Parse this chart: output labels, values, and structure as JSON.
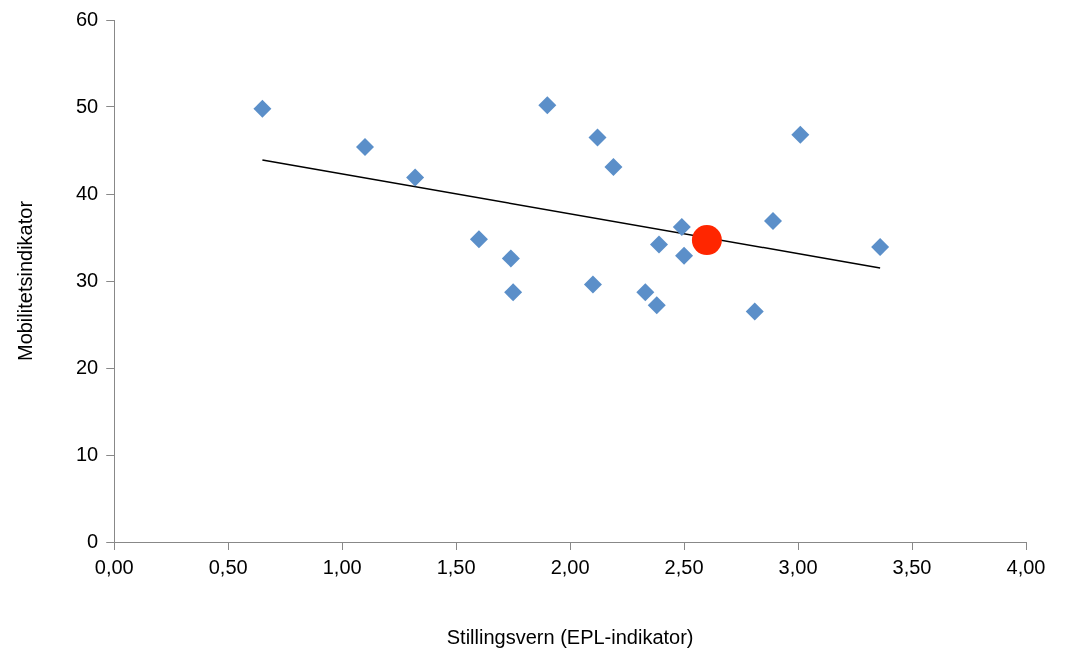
{
  "chart_data": {
    "type": "scatter",
    "xlabel": "Stillingsvern (EPL-indikator)",
    "ylabel": "Mobilitetsindikator",
    "marker": "diamond",
    "grid": false,
    "legend": false,
    "xlim": [
      0,
      4
    ],
    "xticks": [
      {
        "value": 0,
        "label": "0,00"
      },
      {
        "value": 0.5,
        "label": "0,50"
      },
      {
        "value": 1,
        "label": "1,00"
      },
      {
        "value": 1.5,
        "label": "1,50"
      },
      {
        "value": 2,
        "label": "2,00"
      },
      {
        "value": 2.5,
        "label": "2,50"
      },
      {
        "value": 3,
        "label": "3,00"
      },
      {
        "value": 3.5,
        "label": "3,50"
      },
      {
        "value": 4,
        "label": "4,00"
      }
    ],
    "ylim": [
      0,
      60
    ],
    "yticks": [
      0,
      10,
      20,
      30,
      40,
      50,
      60
    ],
    "series": [
      {
        "type": "scatter",
        "color": "#5b8fc9",
        "x": [
          0.65,
          1.1,
          1.32,
          1.6,
          1.74,
          1.75,
          1.9,
          2.1,
          2.12,
          2.19,
          2.33,
          2.39,
          2.38,
          2.49,
          2.5,
          2.81,
          2.89,
          3.01,
          3.36
        ],
        "values": [
          49.8,
          45.4,
          41.9,
          34.8,
          32.6,
          28.7,
          50.2,
          29.6,
          46.5,
          43.1,
          28.7,
          34.2,
          27.2,
          36.2,
          32.9,
          26.5,
          36.9,
          46.8,
          33.9
        ]
      },
      {
        "type": "scatter",
        "color": "#ff2600",
        "marker": "circle",
        "x": [
          2.6
        ],
        "values": [
          34.7
        ]
      },
      {
        "type": "line",
        "color": "#000000",
        "marker": "none",
        "x": [
          0.65,
          3.36
        ],
        "values": [
          43.9,
          31.5
        ]
      }
    ]
  }
}
